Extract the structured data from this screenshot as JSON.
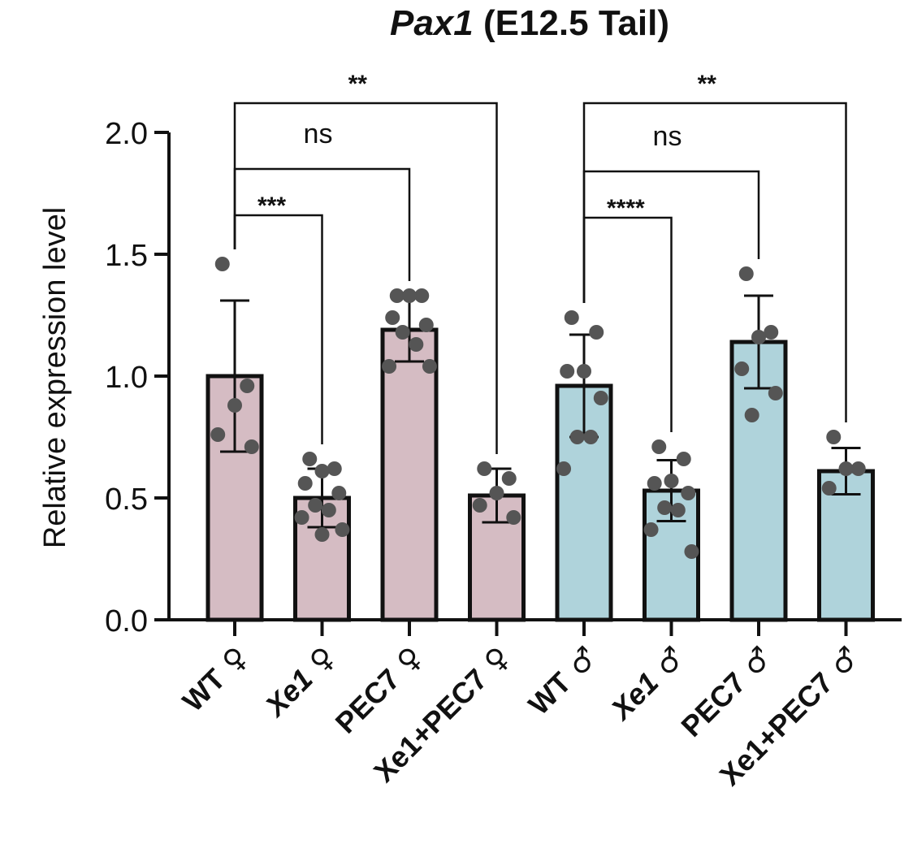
{
  "chart_data": {
    "type": "bar",
    "title_gene": "Pax1",
    "title_rest": " (E12.5 Tail)",
    "xlabel": "",
    "ylabel": "Relative expression level",
    "ylim": [
      0,
      2.0
    ],
    "yticks": [
      "0.0",
      "0.5",
      "1.0",
      "1.5",
      "2.0"
    ],
    "ytick_values": [
      0,
      0.5,
      1.0,
      1.5,
      2.0
    ],
    "categories": [
      {
        "prefix": "WT",
        "prefix_italic": false,
        "sex": "♀"
      },
      {
        "prefix": "Xe1",
        "prefix_italic": true,
        "sex": "♀"
      },
      {
        "prefix": "PEC7",
        "prefix_italic": false,
        "sex": "♀"
      },
      {
        "prefix": "Xe1+PEC7",
        "prefix_italic": false,
        "sex": "♀"
      },
      {
        "prefix": "WT",
        "prefix_italic": false,
        "sex": "♂"
      },
      {
        "prefix": "Xe1",
        "prefix_italic": true,
        "sex": "♂"
      },
      {
        "prefix": "PEC7",
        "prefix_italic": false,
        "sex": "♂"
      },
      {
        "prefix": "Xe1+PEC7",
        "prefix_italic": false,
        "sex": "♂"
      }
    ],
    "values": [
      1.0,
      0.5,
      1.19,
      0.51,
      0.96,
      0.53,
      1.14,
      0.61
    ],
    "sd": [
      0.31,
      0.12,
      0.13,
      0.11,
      0.21,
      0.125,
      0.19,
      0.095
    ],
    "bar_colors": [
      "#d5bcc3",
      "#d5bcc3",
      "#d5bcc3",
      "#d5bcc3",
      "#afd3db",
      "#afd3db",
      "#afd3db",
      "#afd3db"
    ],
    "points": [
      [
        1.46,
        0.96,
        0.88,
        0.76,
        0.71
      ],
      [
        0.66,
        0.62,
        0.61,
        0.56,
        0.52,
        0.47,
        0.45,
        0.42,
        0.37,
        0.35
      ],
      [
        1.33,
        1.33,
        1.33,
        1.24,
        1.21,
        1.18,
        1.13,
        1.04,
        1.04
      ],
      [
        0.62,
        0.58,
        0.52,
        0.47,
        0.42
      ],
      [
        1.24,
        1.18,
        1.02,
        1.02,
        0.91,
        0.75,
        0.75,
        0.62
      ],
      [
        0.71,
        0.66,
        0.57,
        0.56,
        0.52,
        0.46,
        0.45,
        0.37,
        0.28
      ],
      [
        1.42,
        1.18,
        1.16,
        1.03,
        0.93,
        0.84
      ],
      [
        0.75,
        0.62,
        0.62,
        0.54
      ]
    ],
    "point_color": "#555555",
    "significance": [
      {
        "from": 0,
        "to": 1,
        "label": "***",
        "y": 1.66
      },
      {
        "from": 0,
        "to": 2,
        "label": "ns",
        "y": 1.85
      },
      {
        "from": 0,
        "to": 3,
        "label": "**",
        "y": 2.12
      },
      {
        "from": 4,
        "to": 5,
        "label": "****",
        "y": 1.65
      },
      {
        "from": 4,
        "to": 6,
        "label": "ns",
        "y": 1.84
      },
      {
        "from": 4,
        "to": 7,
        "label": "**",
        "y": 2.12
      }
    ],
    "grid": false,
    "legend": "none"
  }
}
